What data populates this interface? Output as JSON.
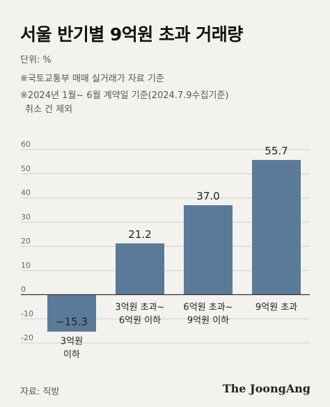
{
  "title": "서울 반기별 9억원 초과 거래량",
  "notes": {
    "unit": "단위: %",
    "source_note": "※국토교통부 매매 실거래가 자료 기준",
    "period_note": "※2024년 1월~ 6월 계약일 기준(2024.7.9수집기준)",
    "period_note_2": "취소 건 제외"
  },
  "footer": {
    "source": "자료: 직방",
    "brand": "The JoongAng"
  },
  "colors": {
    "bar": "#5b7a99",
    "background": "#f3f2ee",
    "grid": "#cfcfcf",
    "axis": "#333333"
  },
  "chart_data": {
    "type": "bar",
    "categories": [
      [
        "3억원",
        "이하"
      ],
      [
        "3억원 초과~",
        "6억원 이하"
      ],
      [
        "6억원 초과~",
        "9억원 이하"
      ],
      [
        "9억원 초과"
      ]
    ],
    "values": [
      -15.3,
      21.2,
      37.0,
      55.7
    ],
    "value_labels": [
      "−15.3",
      "21.2",
      "37.0",
      "55.7"
    ],
    "ylim": [
      -20,
      60
    ],
    "yticks": [
      -20,
      -10,
      0,
      10,
      20,
      30,
      40,
      50,
      60
    ],
    "grid": true,
    "title": "",
    "xlabel": "",
    "ylabel": ""
  }
}
